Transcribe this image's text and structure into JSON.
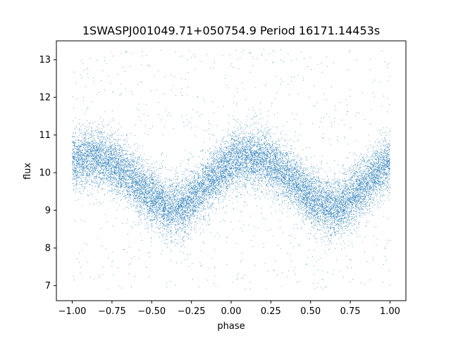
{
  "chart_data": {
    "type": "scatter",
    "title": "1SWASPJ001049.71+050754.9 Period 16171.14453s",
    "xlabel": "phase",
    "ylabel": "flux",
    "xlim": [
      -1.1,
      1.1
    ],
    "ylim": [
      6.6,
      13.5
    ],
    "x_ticks": [
      -1.0,
      -0.75,
      -0.5,
      -0.25,
      0.0,
      0.25,
      0.5,
      0.75,
      1.0
    ],
    "x_tick_labels": [
      "−1.00",
      "−0.75",
      "−0.50",
      "−0.25",
      "0.00",
      "0.25",
      "0.50",
      "0.75",
      "1.00"
    ],
    "y_ticks": [
      7,
      8,
      9,
      10,
      11,
      12,
      13
    ],
    "y_tick_labels": [
      "7",
      "8",
      "9",
      "10",
      "11",
      "12",
      "13"
    ],
    "grid": false,
    "marker_color": "#1f77b4",
    "phase_range": [
      -1.0,
      1.0
    ],
    "profile": [
      {
        "phase": -1.0,
        "mean": 10.3
      },
      {
        "phase": -0.9,
        "mean": 10.4
      },
      {
        "phase": -0.8,
        "mean": 10.35
      },
      {
        "phase": -0.7,
        "mean": 10.1
      },
      {
        "phase": -0.6,
        "mean": 9.75
      },
      {
        "phase": -0.5,
        "mean": 9.35
      },
      {
        "phase": -0.4,
        "mean": 9.05
      },
      {
        "phase": -0.3,
        "mean": 9.1
      },
      {
        "phase": -0.2,
        "mean": 9.5
      },
      {
        "phase": -0.1,
        "mean": 9.9
      },
      {
        "phase": 0.0,
        "mean": 10.3
      },
      {
        "phase": 0.1,
        "mean": 10.4
      },
      {
        "phase": 0.2,
        "mean": 10.35
      },
      {
        "phase": 0.3,
        "mean": 10.1
      },
      {
        "phase": 0.4,
        "mean": 9.75
      },
      {
        "phase": 0.5,
        "mean": 9.35
      },
      {
        "phase": 0.6,
        "mean": 9.05
      },
      {
        "phase": 0.7,
        "mean": 9.1
      },
      {
        "phase": 0.8,
        "mean": 9.5
      },
      {
        "phase": 0.9,
        "mean": 9.9
      },
      {
        "phase": 1.0,
        "mean": 10.3
      }
    ],
    "core_scatter_sigma": 0.38,
    "outlier_range": [
      6.9,
      13.3
    ],
    "n_points_core": 16000,
    "n_points_outliers": 900
  }
}
